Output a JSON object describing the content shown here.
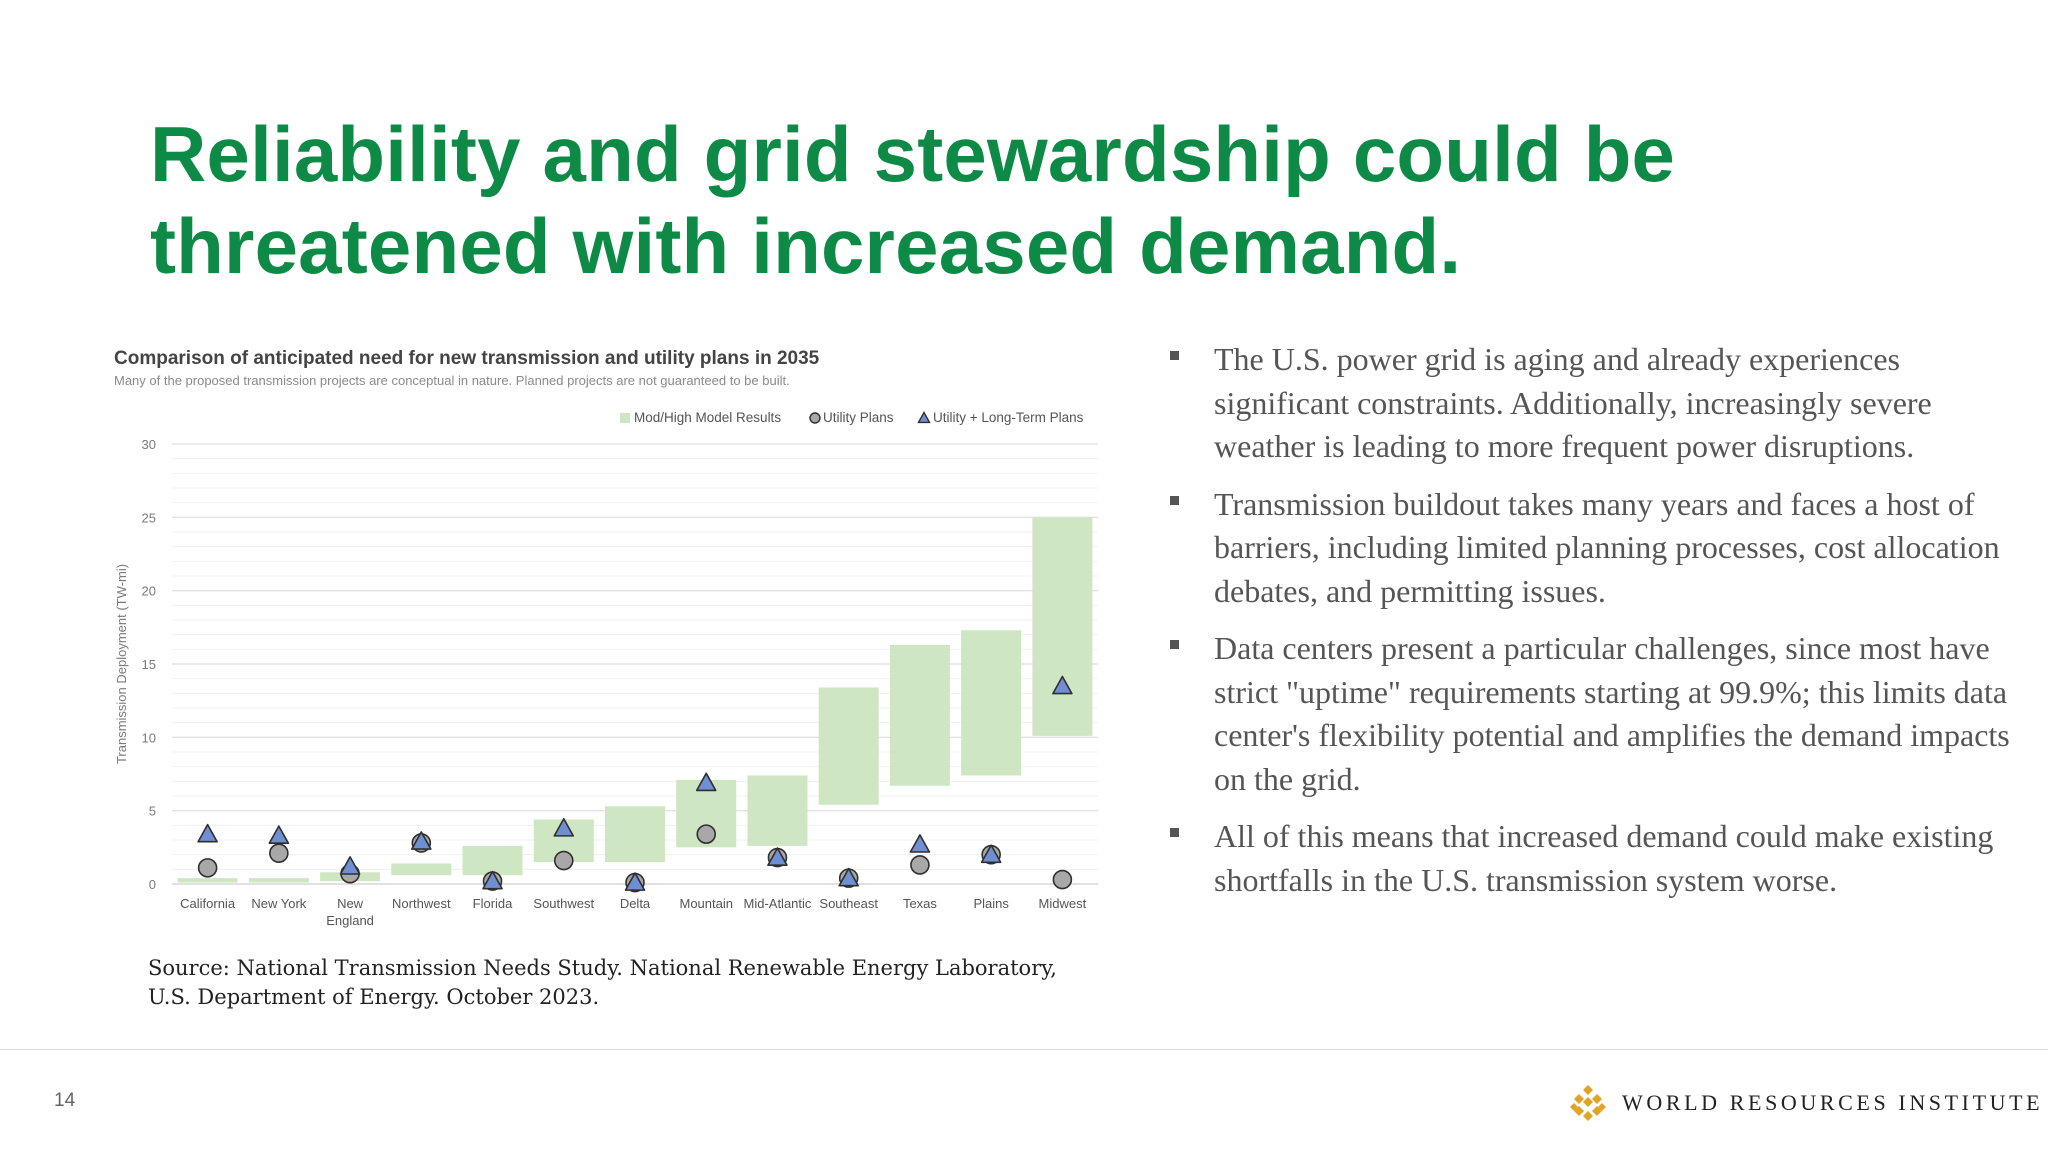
{
  "slide": {
    "title_lines": [
      "Reliability and grid stewardship could be",
      "threatened with increased demand."
    ],
    "page_number": "14",
    "source_lines": [
      "Source: National Transmission Needs Study. National Renewable Energy Laboratory,",
      "U.S. Department of Energy. October 2023."
    ],
    "bullets": [
      "The U.S. power grid is aging and already experiences significant constraints. Additionally, increasingly severe weather is leading to more frequent power disruptions.",
      "Transmission buildout takes many years and faces a host of barriers, including limited planning processes, cost allocation debates, and permitting issues.",
      "Data centers present a particular challenges, since most have strict \"uptime\" requirements starting at 99.9%; this limits data center's flexibility potential and amplifies the demand impacts on the grid.",
      "All of this means that increased demand could make existing shortfalls in the U.S. transmission system worse."
    ],
    "logo_text": "WORLD RESOURCES INSTITUTE",
    "colors": {
      "title": "#0d8a45",
      "range_bar": "#cfe6c2",
      "marker_fill_triangle": "#6f8fd2",
      "marker_fill_circle": "#a8a8a8",
      "marker_stroke": "#2f2f2f",
      "logo_gold": "#e0a526"
    },
    "logo_icon": "wri-diamond-lattice-icon"
  },
  "chart_data": {
    "type": "bar",
    "title": "Comparison of anticipated need for new transmission and utility plans in 2035",
    "subtitle": "Many of the proposed transmission projects are conceptual in nature. Planned projects are not guaranteed to be built.",
    "ylabel": "Transmission Deployment (TW-mi)",
    "xlabel": "",
    "ylim": [
      0,
      30
    ],
    "yticks": [
      0,
      5,
      10,
      15,
      20,
      25,
      30
    ],
    "grid": true,
    "legend_position": "top-right",
    "categories": [
      [
        "California"
      ],
      [
        "New York"
      ],
      [
        "New",
        "England"
      ],
      [
        "Northwest"
      ],
      [
        "Florida"
      ],
      [
        "Southwest"
      ],
      [
        "Delta"
      ],
      [
        "Mountain"
      ],
      [
        "Mid-Atlantic"
      ],
      [
        "Southeast"
      ],
      [
        "Texas"
      ],
      [
        "Plains"
      ],
      [
        "Midwest"
      ]
    ],
    "series": [
      {
        "name": "Mod/High Model Results",
        "kind": "range",
        "low": [
          0.1,
          0.1,
          0.2,
          0.6,
          0.6,
          1.5,
          1.5,
          2.5,
          2.6,
          5.4,
          6.7,
          7.4,
          10.1
        ],
        "high": [
          0.4,
          0.4,
          0.8,
          1.4,
          2.6,
          4.4,
          5.3,
          7.1,
          7.4,
          13.4,
          16.3,
          17.3,
          25.0
        ]
      },
      {
        "name": "Utility Plans",
        "kind": "circle",
        "values": [
          1.1,
          2.1,
          0.7,
          2.8,
          0.2,
          1.6,
          0.1,
          3.4,
          1.8,
          0.4,
          1.3,
          2.0,
          0.3
        ]
      },
      {
        "name": "Utility + Long-Term Plans",
        "kind": "triangle",
        "values": [
          3.4,
          3.3,
          1.2,
          2.9,
          0.2,
          3.8,
          0.1,
          6.9,
          1.8,
          0.4,
          2.7,
          2.0,
          13.5
        ]
      }
    ]
  }
}
